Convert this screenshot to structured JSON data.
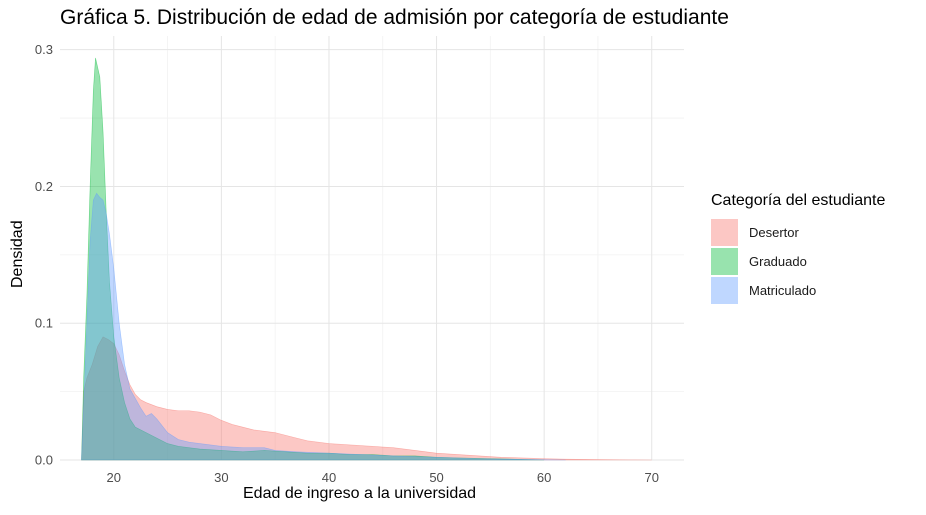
{
  "chart_data": {
    "type": "area",
    "title": "Gráfica 5. Distribución de edad de admisión por categoría de estudiante",
    "xlabel": "Edad de ingreso a la universidad",
    "ylabel": "Densidad",
    "xlim": [
      15,
      73
    ],
    "ylim": [
      0,
      0.31
    ],
    "x_ticks": [
      20,
      30,
      40,
      50,
      60,
      70
    ],
    "y_ticks": [
      0.0,
      0.1,
      0.2,
      0.3
    ],
    "x_tick_labels": [
      "20",
      "30",
      "40",
      "50",
      "60",
      "70"
    ],
    "y_tick_labels": [
      "0.0",
      "0.1",
      "0.2",
      "0.3"
    ],
    "grid": true,
    "legend_title": "Categoría del estudiante",
    "legend_position": "right",
    "series": [
      {
        "name": "Desertor",
        "fill": "#F8766D",
        "points": [
          [
            17,
            0.0
          ],
          [
            17.2,
            0.05
          ],
          [
            17.5,
            0.06
          ],
          [
            18,
            0.07
          ],
          [
            18.5,
            0.083
          ],
          [
            19,
            0.09
          ],
          [
            19.5,
            0.088
          ],
          [
            20,
            0.085
          ],
          [
            20.5,
            0.077
          ],
          [
            21,
            0.065
          ],
          [
            21.5,
            0.055
          ],
          [
            22,
            0.048
          ],
          [
            22.5,
            0.044
          ],
          [
            23,
            0.042
          ],
          [
            24,
            0.039
          ],
          [
            25,
            0.037
          ],
          [
            26,
            0.036
          ],
          [
            27,
            0.036
          ],
          [
            28,
            0.035
          ],
          [
            29,
            0.033
          ],
          [
            30,
            0.029
          ],
          [
            31,
            0.026
          ],
          [
            32,
            0.024
          ],
          [
            33,
            0.022
          ],
          [
            34,
            0.021
          ],
          [
            35,
            0.02
          ],
          [
            36,
            0.018
          ],
          [
            37,
            0.016
          ],
          [
            38,
            0.014
          ],
          [
            39,
            0.013
          ],
          [
            40,
            0.012
          ],
          [
            42,
            0.011
          ],
          [
            44,
            0.01
          ],
          [
            46,
            0.009
          ],
          [
            48,
            0.007
          ],
          [
            50,
            0.005
          ],
          [
            52,
            0.004
          ],
          [
            54,
            0.003
          ],
          [
            56,
            0.002
          ],
          [
            58,
            0.0015
          ],
          [
            60,
            0.001
          ],
          [
            62,
            0.0006
          ],
          [
            65,
            0.0003
          ],
          [
            68,
            0.0001
          ],
          [
            70,
            0.0
          ]
        ]
      },
      {
        "name": "Graduado",
        "fill": "#00BA38",
        "points": [
          [
            17,
            0.0
          ],
          [
            17.2,
            0.06
          ],
          [
            17.5,
            0.12
          ],
          [
            17.8,
            0.2
          ],
          [
            18.1,
            0.27
          ],
          [
            18.3,
            0.294
          ],
          [
            18.5,
            0.287
          ],
          [
            18.7,
            0.28
          ],
          [
            19,
            0.24
          ],
          [
            19.3,
            0.18
          ],
          [
            19.6,
            0.13
          ],
          [
            20,
            0.09
          ],
          [
            20.5,
            0.06
          ],
          [
            21,
            0.042
          ],
          [
            21.5,
            0.03
          ],
          [
            22,
            0.024
          ],
          [
            23,
            0.02
          ],
          [
            24,
            0.016
          ],
          [
            25,
            0.012
          ],
          [
            26,
            0.01
          ],
          [
            27,
            0.009
          ],
          [
            28,
            0.008
          ],
          [
            30,
            0.007
          ],
          [
            32,
            0.006
          ],
          [
            34,
            0.007
          ],
          [
            36,
            0.006
          ],
          [
            38,
            0.005
          ],
          [
            40,
            0.005
          ],
          [
            42,
            0.004
          ],
          [
            44,
            0.004
          ],
          [
            46,
            0.003
          ],
          [
            48,
            0.003
          ],
          [
            50,
            0.002
          ],
          [
            52,
            0.0015
          ],
          [
            55,
            0.001
          ],
          [
            58,
            0.0004
          ],
          [
            60,
            0.0
          ]
        ]
      },
      {
        "name": "Matriculado",
        "fill": "#619CFF",
        "points": [
          [
            17,
            0.0
          ],
          [
            17.2,
            0.04
          ],
          [
            17.5,
            0.1
          ],
          [
            17.8,
            0.16
          ],
          [
            18.1,
            0.19
          ],
          [
            18.4,
            0.195
          ],
          [
            18.7,
            0.192
          ],
          [
            19,
            0.19
          ],
          [
            19.3,
            0.18
          ],
          [
            19.6,
            0.165
          ],
          [
            20,
            0.14
          ],
          [
            20.5,
            0.1
          ],
          [
            21,
            0.07
          ],
          [
            21.5,
            0.052
          ],
          [
            22,
            0.045
          ],
          [
            22.5,
            0.038
          ],
          [
            23,
            0.032
          ],
          [
            23.5,
            0.034
          ],
          [
            24,
            0.03
          ],
          [
            25,
            0.02
          ],
          [
            26,
            0.015
          ],
          [
            27,
            0.013
          ],
          [
            28,
            0.012
          ],
          [
            30,
            0.01
          ],
          [
            32,
            0.009
          ],
          [
            34,
            0.009
          ],
          [
            35,
            0.007
          ],
          [
            37,
            0.006
          ],
          [
            40,
            0.005
          ],
          [
            43,
            0.004
          ],
          [
            46,
            0.003
          ],
          [
            50,
            0.002
          ],
          [
            54,
            0.001
          ],
          [
            58,
            0.0004
          ],
          [
            62,
            0.0
          ]
        ]
      }
    ]
  }
}
